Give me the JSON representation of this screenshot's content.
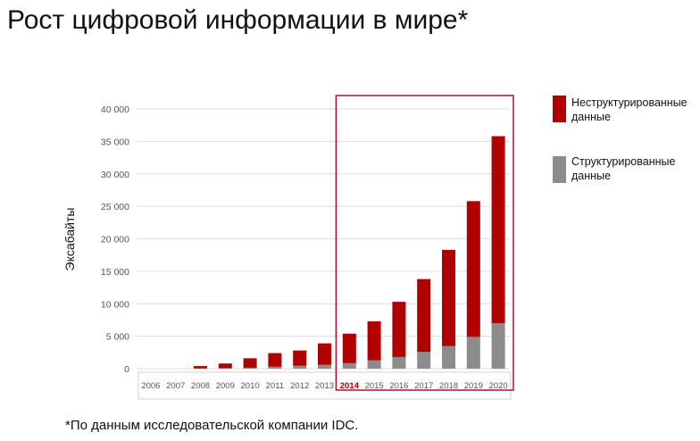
{
  "title": "Рост цифровой информации в мире*",
  "footnote": "*По данным исследовательской компании IDC.",
  "chart_data": {
    "type": "bar",
    "stacked": true,
    "ylabel": "Эксабайты",
    "ylim": [
      0,
      40000
    ],
    "yticks": [
      0,
      5000,
      10000,
      15000,
      20000,
      25000,
      30000,
      35000,
      40000
    ],
    "ytick_labels": [
      "0",
      "5 000",
      "10 000",
      "15 000",
      "20 000",
      "25 000",
      "30 000",
      "35 000",
      "40 000"
    ],
    "categories": [
      "2006",
      "2007",
      "2008",
      "2009",
      "2010",
      "2011",
      "2012",
      "2013",
      "2014",
      "2015",
      "2016",
      "2017",
      "2018",
      "2019",
      "2020"
    ],
    "highlight_category": "2014",
    "highlight_range": [
      "2014",
      "2020"
    ],
    "grid": true,
    "legend_position": "right",
    "series": [
      {
        "name": "Структурированные данные",
        "color": "#8c8c8c",
        "values": [
          0,
          0,
          50,
          80,
          150,
          300,
          450,
          600,
          850,
          1300,
          1800,
          2600,
          3500,
          4900,
          7000
        ]
      },
      {
        "name": "Неструктурированные данные",
        "color": "#b00000",
        "values": [
          0,
          0,
          350,
          720,
          1450,
          2100,
          2350,
          3300,
          4550,
          6000,
          8500,
          11200,
          14800,
          20900,
          28800
        ]
      }
    ]
  },
  "legend": [
    {
      "label_line1": "Неструктурированные",
      "label_line2": "данные",
      "color": "#b00000"
    },
    {
      "label_line1": "Структурированные",
      "label_line2": "данные",
      "color": "#8c8c8c"
    }
  ],
  "colors": {
    "highlight_frame": "#b01030",
    "highlight_tick": "#b00000",
    "grid": "#dcdcdc",
    "axis_text": "#555555"
  }
}
